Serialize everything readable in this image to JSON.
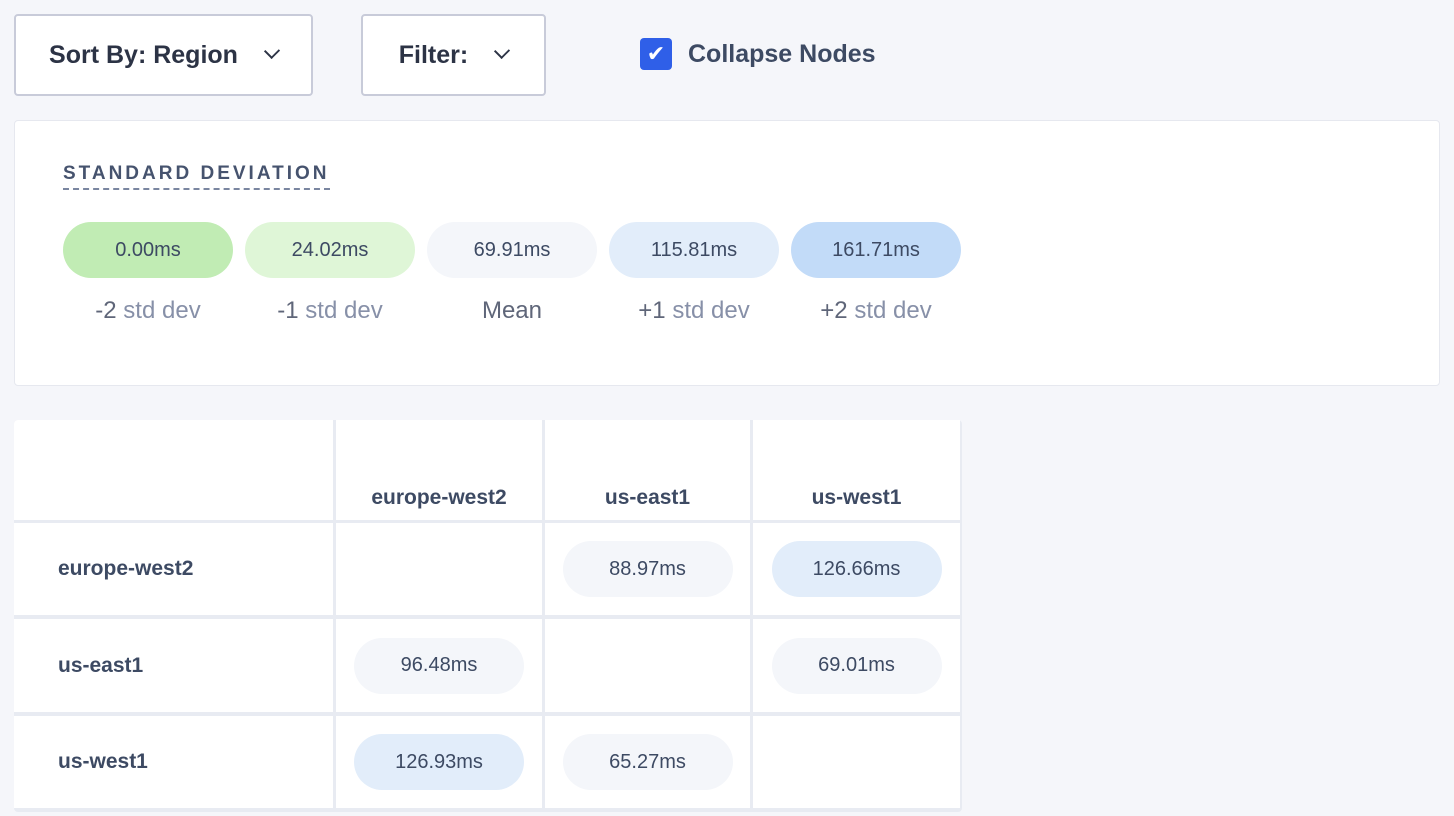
{
  "toolbar": {
    "sort_label": "Sort By: Region",
    "filter_label": "Filter:",
    "collapse_label": "Collapse Nodes",
    "collapse_checked": true
  },
  "std_dev": {
    "title": "STANDARD DEVIATION",
    "items": [
      {
        "value": "0.00ms",
        "prefix": "-2",
        "suffix": " std dev",
        "color": "#c1ecb4"
      },
      {
        "value": "24.02ms",
        "prefix": "-1",
        "suffix": " std dev",
        "color": "#dff6d7"
      },
      {
        "value": "69.91ms",
        "prefix": "Mean",
        "suffix": "",
        "color": "#f4f6fa"
      },
      {
        "value": "115.81ms",
        "prefix": "+1",
        "suffix": " std dev",
        "color": "#e2edfa"
      },
      {
        "value": "161.71ms",
        "prefix": "+2",
        "suffix": " std dev",
        "color": "#c2dbf8"
      }
    ]
  },
  "matrix": {
    "columns": [
      "europe-west2",
      "us-east1",
      "us-west1"
    ],
    "rows": [
      {
        "label": "europe-west2",
        "cells": [
          null,
          {
            "value": "88.97ms",
            "color": "#f4f6fa"
          },
          {
            "value": "126.66ms",
            "color": "#e2edfa"
          }
        ]
      },
      {
        "label": "us-east1",
        "cells": [
          {
            "value": "96.48ms",
            "color": "#f4f6fa"
          },
          null,
          {
            "value": "69.01ms",
            "color": "#f4f6fa"
          }
        ]
      },
      {
        "label": "us-west1",
        "cells": [
          {
            "value": "126.93ms",
            "color": "#e2edfa"
          },
          {
            "value": "65.27ms",
            "color": "#f4f6fa"
          },
          null
        ]
      }
    ]
  }
}
